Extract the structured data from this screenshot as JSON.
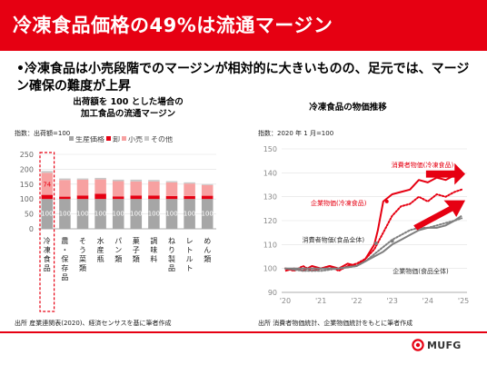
{
  "slide": {
    "title": "冷凍食品価格の49%は流通マージン",
    "bullet": "•冷凍食品は小売段階でのマージンが相対的に大きいものの、足元では、マージン確保の難度が上昇",
    "footer_logo": "MUFG"
  },
  "chart_data": [
    {
      "type": "bar",
      "stacked": true,
      "title_line1": "出荷額を 100 とした場合の",
      "title_line2": "加工食品の流通マージン",
      "unit_label": "指数：出荷額=100",
      "source": "出所 産業連関表(2020)、経済センサスを基に筆者作成",
      "categories": [
        "冷凍食品",
        "農・保存品",
        "そう菜類",
        "水産瓶",
        "パン類",
        "菓子類",
        "調味料",
        "ねり製品",
        "レトルト",
        "めん類"
      ],
      "legend": [
        "生産価格",
        "卸",
        "小売",
        "その他"
      ],
      "series": [
        {
          "name": "生産価格",
          "color": "#a6a6a6",
          "values": [
            100,
            100,
            100,
            100,
            100,
            100,
            100,
            100,
            100,
            100
          ]
        },
        {
          "name": "卸",
          "color": "#e60012",
          "values": [
            14,
            8,
            12,
            18,
            9,
            12,
            12,
            10,
            10,
            11
          ]
        },
        {
          "name": "小売",
          "color": "#f7a1a1",
          "values": [
            74,
            56,
            53,
            48,
            51,
            47,
            47,
            46,
            42,
            36
          ]
        },
        {
          "name": "その他",
          "color": "#c8c8c8",
          "values": [
            6,
            5,
            4,
            5,
            5,
            6,
            5,
            4,
            4,
            3
          ]
        }
      ],
      "bar_labels_bottom": [
        "100",
        "100",
        "100",
        "100",
        "100",
        "100",
        "100",
        "100",
        "100",
        "100"
      ],
      "bar_labels_top": [
        "74"
      ],
      "highlight_category": "冷凍食品",
      "ylim": [
        0,
        250
      ],
      "yticks": [
        0,
        50,
        100,
        150,
        200,
        250
      ],
      "grid": true
    },
    {
      "type": "line",
      "title": "冷凍食品の物価推移",
      "unit_label": "指数：2020 年 1 月=100",
      "source": "出所 消費者物価統計、企業物価統計をもとに筆者作成",
      "ylim": [
        90,
        150
      ],
      "yticks": [
        90,
        100,
        110,
        120,
        130,
        140,
        150
      ],
      "xticks": [
        "'20",
        "'21",
        "'22",
        "'23",
        "'24",
        "'25"
      ],
      "series": [
        {
          "name": "消費者物価(冷凍食品)",
          "color": "#e60012",
          "style": "solid",
          "width": 2,
          "x": [
            2020.0,
            2020.25,
            2020.5,
            2020.75,
            2021.0,
            2021.25,
            2021.5,
            2021.75,
            2022.0,
            2022.25,
            2022.5,
            2022.6,
            2022.75,
            2023.0,
            2023.25,
            2023.5,
            2023.75,
            2024.0,
            2024.25,
            2024.5,
            2024.75,
            2024.95
          ],
          "y": [
            99,
            100,
            99,
            101,
            100,
            101,
            100,
            102,
            101,
            104,
            110,
            116,
            128,
            131,
            132,
            133,
            137,
            136,
            138,
            137,
            139,
            141
          ]
        },
        {
          "name": "企業物価(冷凍食品)",
          "color": "#e60012",
          "style": "dotted",
          "width": 2,
          "x": [
            2020.0,
            2020.25,
            2020.5,
            2020.75,
            2021.0,
            2021.25,
            2021.5,
            2021.75,
            2022.0,
            2022.25,
            2022.5,
            2022.75,
            2023.0,
            2023.25,
            2023.5,
            2023.75,
            2024.0,
            2024.25,
            2024.5,
            2024.75,
            2024.95
          ],
          "y": [
            100,
            99,
            101,
            99,
            100,
            101,
            99,
            101,
            102,
            104,
            108,
            115,
            122,
            126,
            127,
            130,
            128,
            131,
            130,
            132,
            133
          ]
        },
        {
          "name": "消費者物価(食品全体)",
          "color": "#7f7f7f",
          "style": "solid",
          "width": 2,
          "x": [
            2020.0,
            2020.5,
            2021.0,
            2021.5,
            2022.0,
            2022.25,
            2022.5,
            2022.75,
            2023.0,
            2023.25,
            2023.5,
            2023.75,
            2024.0,
            2024.25,
            2024.5,
            2024.75,
            2024.95
          ],
          "y": [
            100,
            100,
            100,
            100,
            101,
            103,
            105,
            107,
            110,
            112,
            114,
            116,
            117,
            117,
            118,
            120,
            122
          ]
        },
        {
          "name": "企業物価(食品全体)",
          "color": "#7f7f7f",
          "style": "dotted",
          "width": 2,
          "x": [
            2020.0,
            2020.5,
            2021.0,
            2021.5,
            2022.0,
            2022.25,
            2022.5,
            2022.75,
            2023.0,
            2023.25,
            2023.5,
            2023.75,
            2024.0,
            2024.25,
            2024.5,
            2024.75,
            2024.95
          ],
          "y": [
            100,
            99,
            99,
            100,
            101,
            103,
            106,
            109,
            112,
            114,
            116,
            117,
            117,
            118,
            119,
            120,
            121
          ]
        }
      ],
      "annotations": [
        {
          "text": "消費者物価(冷凍食品)",
          "color": "#e60012",
          "at": [
            2023.85,
            142.5
          ]
        },
        {
          "text": "企業物価(冷凍食品)",
          "color": "#e60012",
          "at": [
            2021.5,
            126.5
          ]
        },
        {
          "text": "消費者物価(食品全体)",
          "color": "#333333",
          "at": [
            2021.35,
            111
          ]
        },
        {
          "text": "企業物価(食品全体)",
          "color": "#333333",
          "at": [
            2023.8,
            98
          ]
        }
      ]
    }
  ]
}
